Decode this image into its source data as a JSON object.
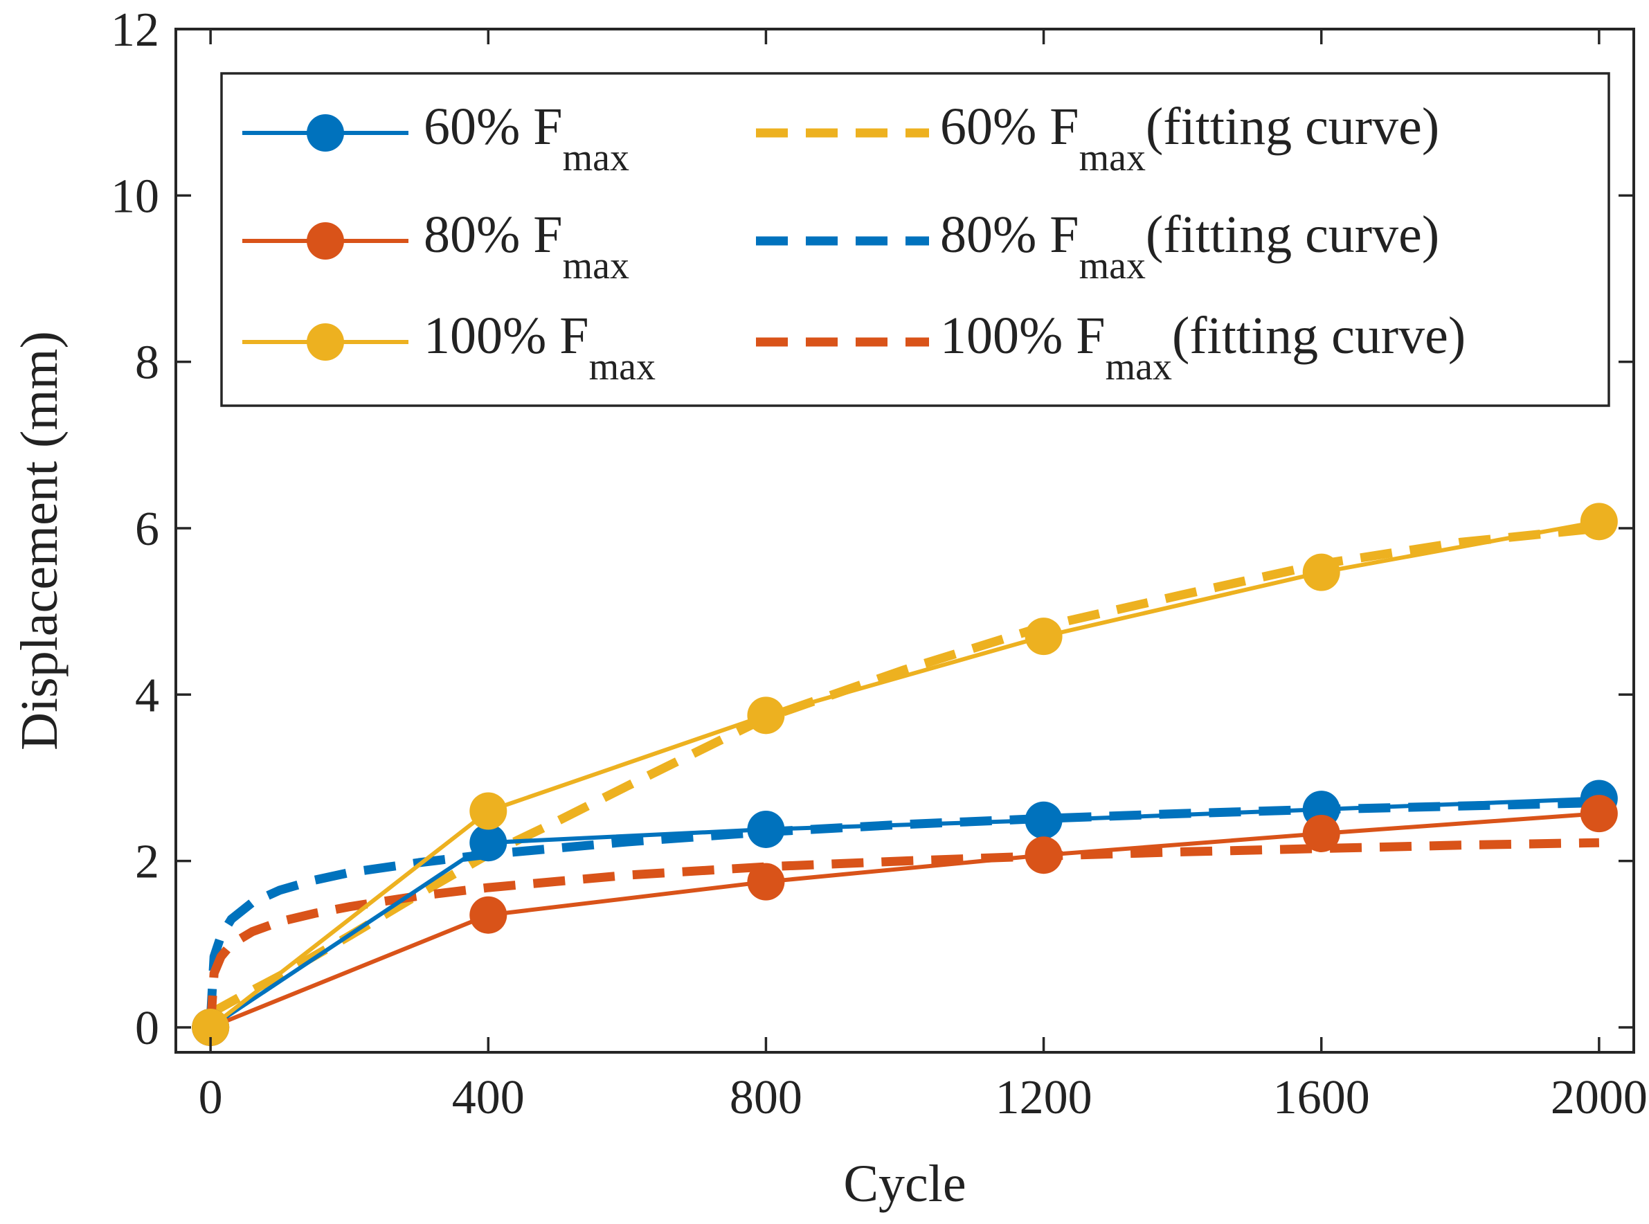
{
  "chart_data": {
    "type": "line",
    "title": "",
    "xlabel": "Cycle",
    "ylabel": "Displacement (mm)",
    "xlim": [
      -50,
      2050
    ],
    "ylim": [
      -0.3,
      12
    ],
    "xticks": [
      0,
      400,
      800,
      1200,
      1600,
      2000
    ],
    "yticks": [
      0,
      2,
      4,
      6,
      8,
      10,
      12
    ],
    "grid": false,
    "legend_position": "top",
    "colors": {
      "blue": "#0072BD",
      "orange": "#D95319",
      "yellow": "#EDB120",
      "axis": "#262626"
    },
    "series": [
      {
        "name": "60% F",
        "name_sub": "max",
        "style": "solid",
        "marker": "circle",
        "color": "#0072BD",
        "x": [
          0,
          400,
          800,
          1200,
          1600,
          2000
        ],
        "values": [
          0,
          2.22,
          2.38,
          2.49,
          2.62,
          2.75
        ]
      },
      {
        "name": "80% F",
        "name_sub": "max",
        "style": "solid",
        "marker": "circle",
        "color": "#D95319",
        "x": [
          0,
          400,
          800,
          1200,
          1600,
          2000
        ],
        "values": [
          0,
          1.35,
          1.75,
          2.07,
          2.33,
          2.57
        ]
      },
      {
        "name": "100% F",
        "name_sub": "max",
        "style": "solid",
        "marker": "circle",
        "color": "#EDB120",
        "x": [
          0,
          400,
          800,
          1200,
          1600,
          2000
        ],
        "values": [
          0,
          2.6,
          3.75,
          4.7,
          5.47,
          6.08
        ]
      },
      {
        "name": "60% F",
        "name_sub": "max",
        "name_suffix": "(fitting curve)",
        "style": "dashed",
        "marker": "none",
        "color": "#EDB120",
        "x": [
          0,
          50,
          100,
          200,
          300,
          400,
          500,
          600,
          800,
          1000,
          1200,
          1400,
          1600,
          1800,
          2000
        ],
        "values": [
          0.17,
          0.4,
          0.62,
          1.1,
          1.6,
          2.08,
          2.48,
          2.9,
          3.72,
          4.3,
          4.82,
          5.2,
          5.57,
          5.83,
          6.0
        ]
      },
      {
        "name": "80% F",
        "name_sub": "max",
        "name_suffix": "(fitting curve)",
        "style": "dashed",
        "marker": "none",
        "color": "#0072BD",
        "x": [
          0,
          5,
          15,
          30,
          60,
          100,
          150,
          200,
          300,
          400,
          600,
          800,
          1000,
          1200,
          1400,
          1600,
          1800,
          2000
        ],
        "values": [
          0.08,
          0.85,
          1.1,
          1.3,
          1.5,
          1.65,
          1.77,
          1.86,
          1.98,
          2.08,
          2.23,
          2.35,
          2.44,
          2.51,
          2.57,
          2.62,
          2.66,
          2.7
        ]
      },
      {
        "name": "100% F",
        "name_sub": "max",
        "name_suffix": "(fitting curve)",
        "style": "dashed",
        "marker": "none",
        "color": "#D95319",
        "x": [
          0,
          5,
          15,
          30,
          60,
          100,
          150,
          200,
          300,
          400,
          600,
          800,
          1000,
          1200,
          1400,
          1600,
          1800,
          2000
        ],
        "values": [
          0.0,
          0.65,
          0.85,
          1.0,
          1.15,
          1.27,
          1.37,
          1.45,
          1.58,
          1.68,
          1.83,
          1.93,
          2.0,
          2.06,
          2.11,
          2.15,
          2.19,
          2.22
        ]
      }
    ]
  }
}
